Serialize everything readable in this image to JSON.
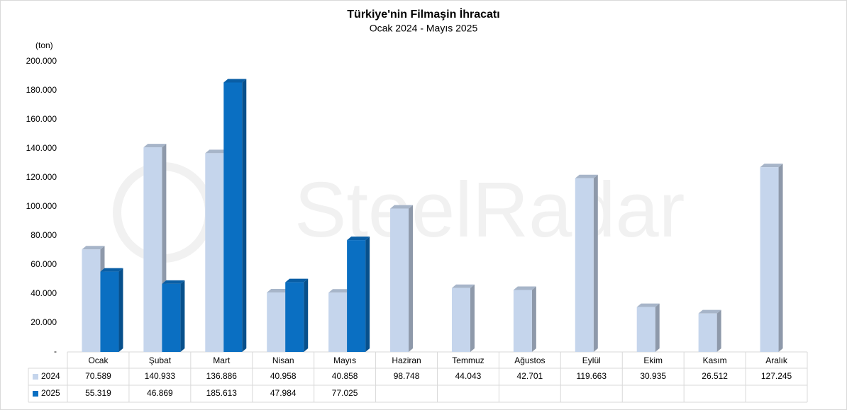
{
  "chart_data": {
    "type": "bar3d",
    "title": "Türkiye'nin Filmaşin İhracatı",
    "subtitle": "Ocak 2024 - Mayıs 2025",
    "y_label": "(ton)",
    "watermark": "SteelRadar",
    "categories": [
      "Ocak",
      "Şubat",
      "Mart",
      "Nisan",
      "Mayıs",
      "Haziran",
      "Temmuz",
      "Ağustos",
      "Eylül",
      "Ekim",
      "Kasım",
      "Aralık"
    ],
    "series": [
      {
        "name": "2024",
        "color": "#c5d5ec",
        "values": [
          70589,
          140933,
          136886,
          40958,
          40858,
          98748,
          44043,
          42701,
          119663,
          30935,
          26512,
          127245
        ],
        "value_labels": [
          "70.589",
          "140.933",
          "136.886",
          "40.958",
          "40.858",
          "98.748",
          "44.043",
          "42.701",
          "119.663",
          "30.935",
          "26.512",
          "127.245"
        ]
      },
      {
        "name": "2025",
        "color": "#0a6fc2",
        "values": [
          55319,
          46869,
          185613,
          47984,
          77025,
          null,
          null,
          null,
          null,
          null,
          null,
          null
        ],
        "value_labels": [
          "55.319",
          "46.869",
          "185.613",
          "47.984",
          "77.025",
          null,
          null,
          null,
          null,
          null,
          null,
          null
        ]
      }
    ],
    "ylim": [
      0,
      200000
    ],
    "yticks": [
      {
        "value": 0,
        "label": "-"
      },
      {
        "value": 20000,
        "label": "20.000"
      },
      {
        "value": 40000,
        "label": "40.000"
      },
      {
        "value": 60000,
        "label": "60.000"
      },
      {
        "value": 80000,
        "label": "80.000"
      },
      {
        "value": 100000,
        "label": "100.000"
      },
      {
        "value": 120000,
        "label": "120.000"
      },
      {
        "value": 140000,
        "label": "140.000"
      },
      {
        "value": 160000,
        "label": "160.000"
      },
      {
        "value": 180000,
        "label": "180.000"
      },
      {
        "value": 200000,
        "label": "200.000"
      }
    ],
    "grid": false
  }
}
